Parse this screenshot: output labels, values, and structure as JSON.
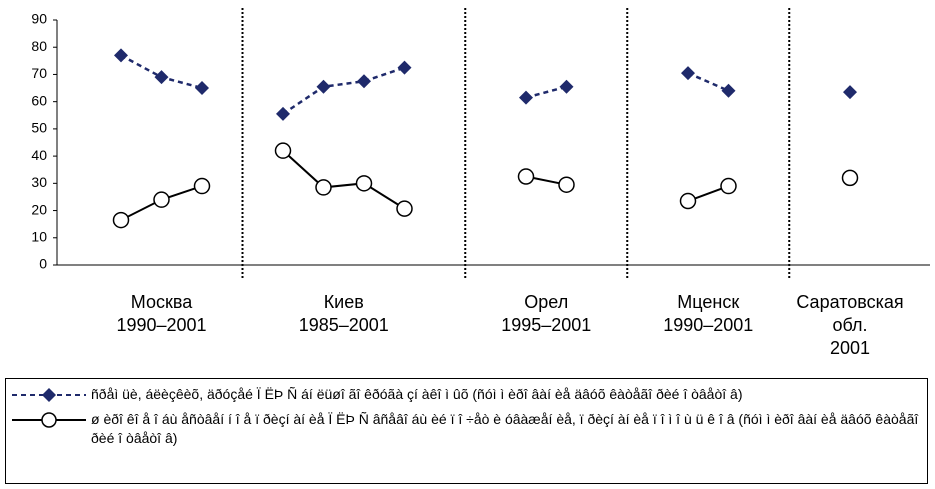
{
  "chart_data": {
    "type": "line",
    "categories": [
      null,
      null,
      null,
      null,
      null,
      null,
      null,
      null,
      null,
      null,
      null,
      null,
      null,
      null,
      null,
      null,
      null,
      null,
      null
    ],
    "groups": [
      {
        "label": [
          "Москва",
          "1990–2001"
        ]
      },
      {
        "label": [
          "Киев",
          "1985–2001"
        ]
      },
      {
        "label": [
          "Орел",
          "1995–2001"
        ]
      },
      {
        "label": [
          "Мценск",
          "1990–2001"
        ]
      },
      {
        "label": [
          "Саратовская",
          "обл.",
          "2001"
        ]
      }
    ],
    "series": [
      {
        "name": "ñðåì üè, áëèçêèõ, äðóçåé Ï ËÞ Ñ áí ëüøî ãî êðóãà çí àêî ì ûõ (ñóì ì èðî âàí èå äâóõ êàòåãî ðèé î òâåòî â)",
        "color": "#1f2a6b",
        "marker": "diamond",
        "dashed": true,
        "values": [
          77,
          69,
          65,
          null,
          55.5,
          65.5,
          67.5,
          72.5,
          null,
          null,
          61.5,
          65.5,
          null,
          null,
          70.5,
          64,
          null,
          null,
          63.5
        ]
      },
      {
        "name": "ø èðî êî å î áù åñòâåí í î å ï ðèçí àí èå Ï ËÞ Ñ âñåâî áù èé ï î ÷åò è óâàæåí èå, ï ðèçí àí èå ï î ì î ù ü ê î â (ñóì ì èðî âàí èå äâóõ êàòåãî ðèé î òâåòî â)",
        "color": "#000000",
        "marker": "circle",
        "dashed": false,
        "values": [
          16.5,
          24,
          29,
          null,
          42,
          28.5,
          30,
          20.7,
          null,
          null,
          32.5,
          29.5,
          null,
          null,
          23.5,
          29,
          null,
          null,
          32
        ]
      }
    ],
    "ylim": [
      0,
      90
    ],
    "yticks": [
      0,
      10,
      20,
      30,
      40,
      50,
      60,
      70,
      80,
      90
    ],
    "grid": false
  }
}
